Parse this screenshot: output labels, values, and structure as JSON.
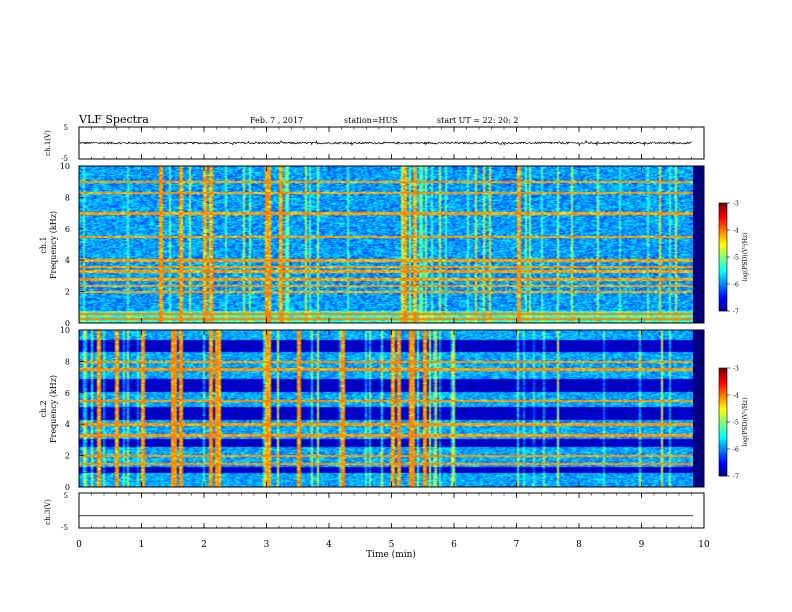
{
  "header": {
    "title": "VLF Spectra",
    "date": "Feb. 7 , 2017",
    "station": "station=HUS",
    "start_ut": "start UT =   22: 20: 2"
  },
  "chart_data": [
    {
      "type": "line",
      "ylabel": "ch.1(V)",
      "ylim": [
        -5,
        5
      ],
      "yticks": [
        "5",
        "-5"
      ],
      "series": [
        {
          "x_range_min": [
            0,
            9.8
          ],
          "y_mean": 0.0,
          "y_noise": 0.6
        }
      ]
    },
    {
      "type": "heatmap",
      "ylabel": "ch.1\nFrequency (kHz)",
      "ylabel_line1": "ch.1",
      "ylabel_line2": "Frequency (kHz)",
      "ylim": [
        0,
        10
      ],
      "yticks": [
        "0",
        "2",
        "4",
        "6",
        "8",
        "10"
      ],
      "xlim": [
        0,
        9.8
      ],
      "colorbar": {
        "label": "log(PSD)(V²/Hz)",
        "range": [
          -7,
          -3
        ],
        "ticks": [
          "-3",
          "-4",
          "-5",
          "-6",
          "-7"
        ]
      },
      "bright_bands_khz": [
        0.3,
        0.6,
        2.0,
        2.4,
        2.8,
        3.3,
        3.6,
        4.0,
        5.5,
        7.0,
        8.3,
        9.0
      ],
      "bright_times_min": [
        1.3,
        1.6,
        2.0,
        2.1,
        3.0,
        3.2,
        5.2,
        5.35,
        7.0
      ]
    },
    {
      "type": "heatmap",
      "ylabel_line1": "ch.2",
      "ylabel_line2": "Frequency (kHz)",
      "ylim": [
        0,
        10
      ],
      "yticks": [
        "0",
        "2",
        "4",
        "6",
        "8",
        "10"
      ],
      "xlim": [
        0,
        9.8
      ],
      "colorbar": {
        "label": "log(PSD)(V²/Hz)",
        "range": [
          -7,
          -3
        ],
        "ticks": [
          "-3",
          "-4",
          "-5",
          "-6",
          "-7"
        ]
      },
      "dark_bands_khz": [
        [
          0.9,
          1.3
        ],
        [
          2.6,
          3.1
        ],
        [
          4.3,
          5.1
        ],
        [
          6.1,
          6.9
        ],
        [
          8.6,
          9.4
        ]
      ],
      "bright_bands_khz": [
        1.5,
        2.0,
        3.3,
        4.0,
        5.5,
        7.5,
        8.0
      ],
      "bright_times_min": [
        0.3,
        0.6,
        1.0,
        1.5,
        1.6,
        2.1,
        2.2,
        3.0,
        3.5,
        4.2,
        5.0,
        5.1,
        5.3,
        5.5
      ]
    },
    {
      "type": "line",
      "ylabel": "ch.3(V)",
      "ylim": [
        -5,
        5
      ],
      "yticks": [
        "5",
        "-5"
      ],
      "xlabel": "Time (min)",
      "xlim": [
        0,
        10
      ],
      "xticks": [
        "0",
        "1",
        "2",
        "3",
        "4",
        "5",
        "6",
        "7",
        "8",
        "9",
        "10"
      ],
      "series": [
        {
          "constant": -1.5
        }
      ]
    }
  ]
}
